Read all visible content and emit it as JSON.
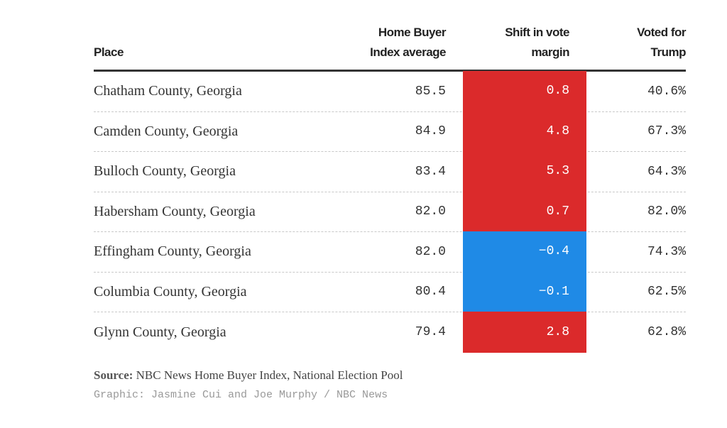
{
  "chart_data": {
    "type": "table",
    "columns": [
      "Place",
      "Home Buyer Index average",
      "Shift in vote margin",
      "Voted for Trump"
    ],
    "header_lines": {
      "place": [
        "Place"
      ],
      "index": [
        "Home Buyer",
        "Index average"
      ],
      "shift": [
        "Shift in vote",
        "margin"
      ],
      "trump": [
        "Voted for",
        "Trump"
      ]
    },
    "rows": [
      {
        "place": "Chatham County, Georgia",
        "index": "85.5",
        "shift": "0.8",
        "shift_color": "red",
        "trump": "40.6%"
      },
      {
        "place": "Camden County, Georgia",
        "index": "84.9",
        "shift": "4.8",
        "shift_color": "red",
        "trump": "67.3%"
      },
      {
        "place": "Bulloch County, Georgia",
        "index": "83.4",
        "shift": "5.3",
        "shift_color": "red",
        "trump": "64.3%"
      },
      {
        "place": "Habersham County, Georgia",
        "index": "82.0",
        "shift": "0.7",
        "shift_color": "red",
        "trump": "82.0%"
      },
      {
        "place": "Effingham County, Georgia",
        "index": "82.0",
        "shift": "−0.4",
        "shift_color": "blue",
        "trump": "74.3%"
      },
      {
        "place": "Columbia County, Georgia",
        "index": "80.4",
        "shift": "−0.1",
        "shift_color": "blue",
        "trump": "62.5%"
      },
      {
        "place": "Glynn County, Georgia",
        "index": "79.4",
        "shift": "2.8",
        "shift_color": "red",
        "trump": "62.8%"
      }
    ],
    "colors": {
      "red": "#db2a2b",
      "blue": "#1f8ae6"
    }
  },
  "footer": {
    "source_label": "Source:",
    "source_text": " NBC News Home Buyer Index, National Election Pool",
    "credit": "Graphic: Jasmine Cui and Joe Murphy / NBC News"
  }
}
